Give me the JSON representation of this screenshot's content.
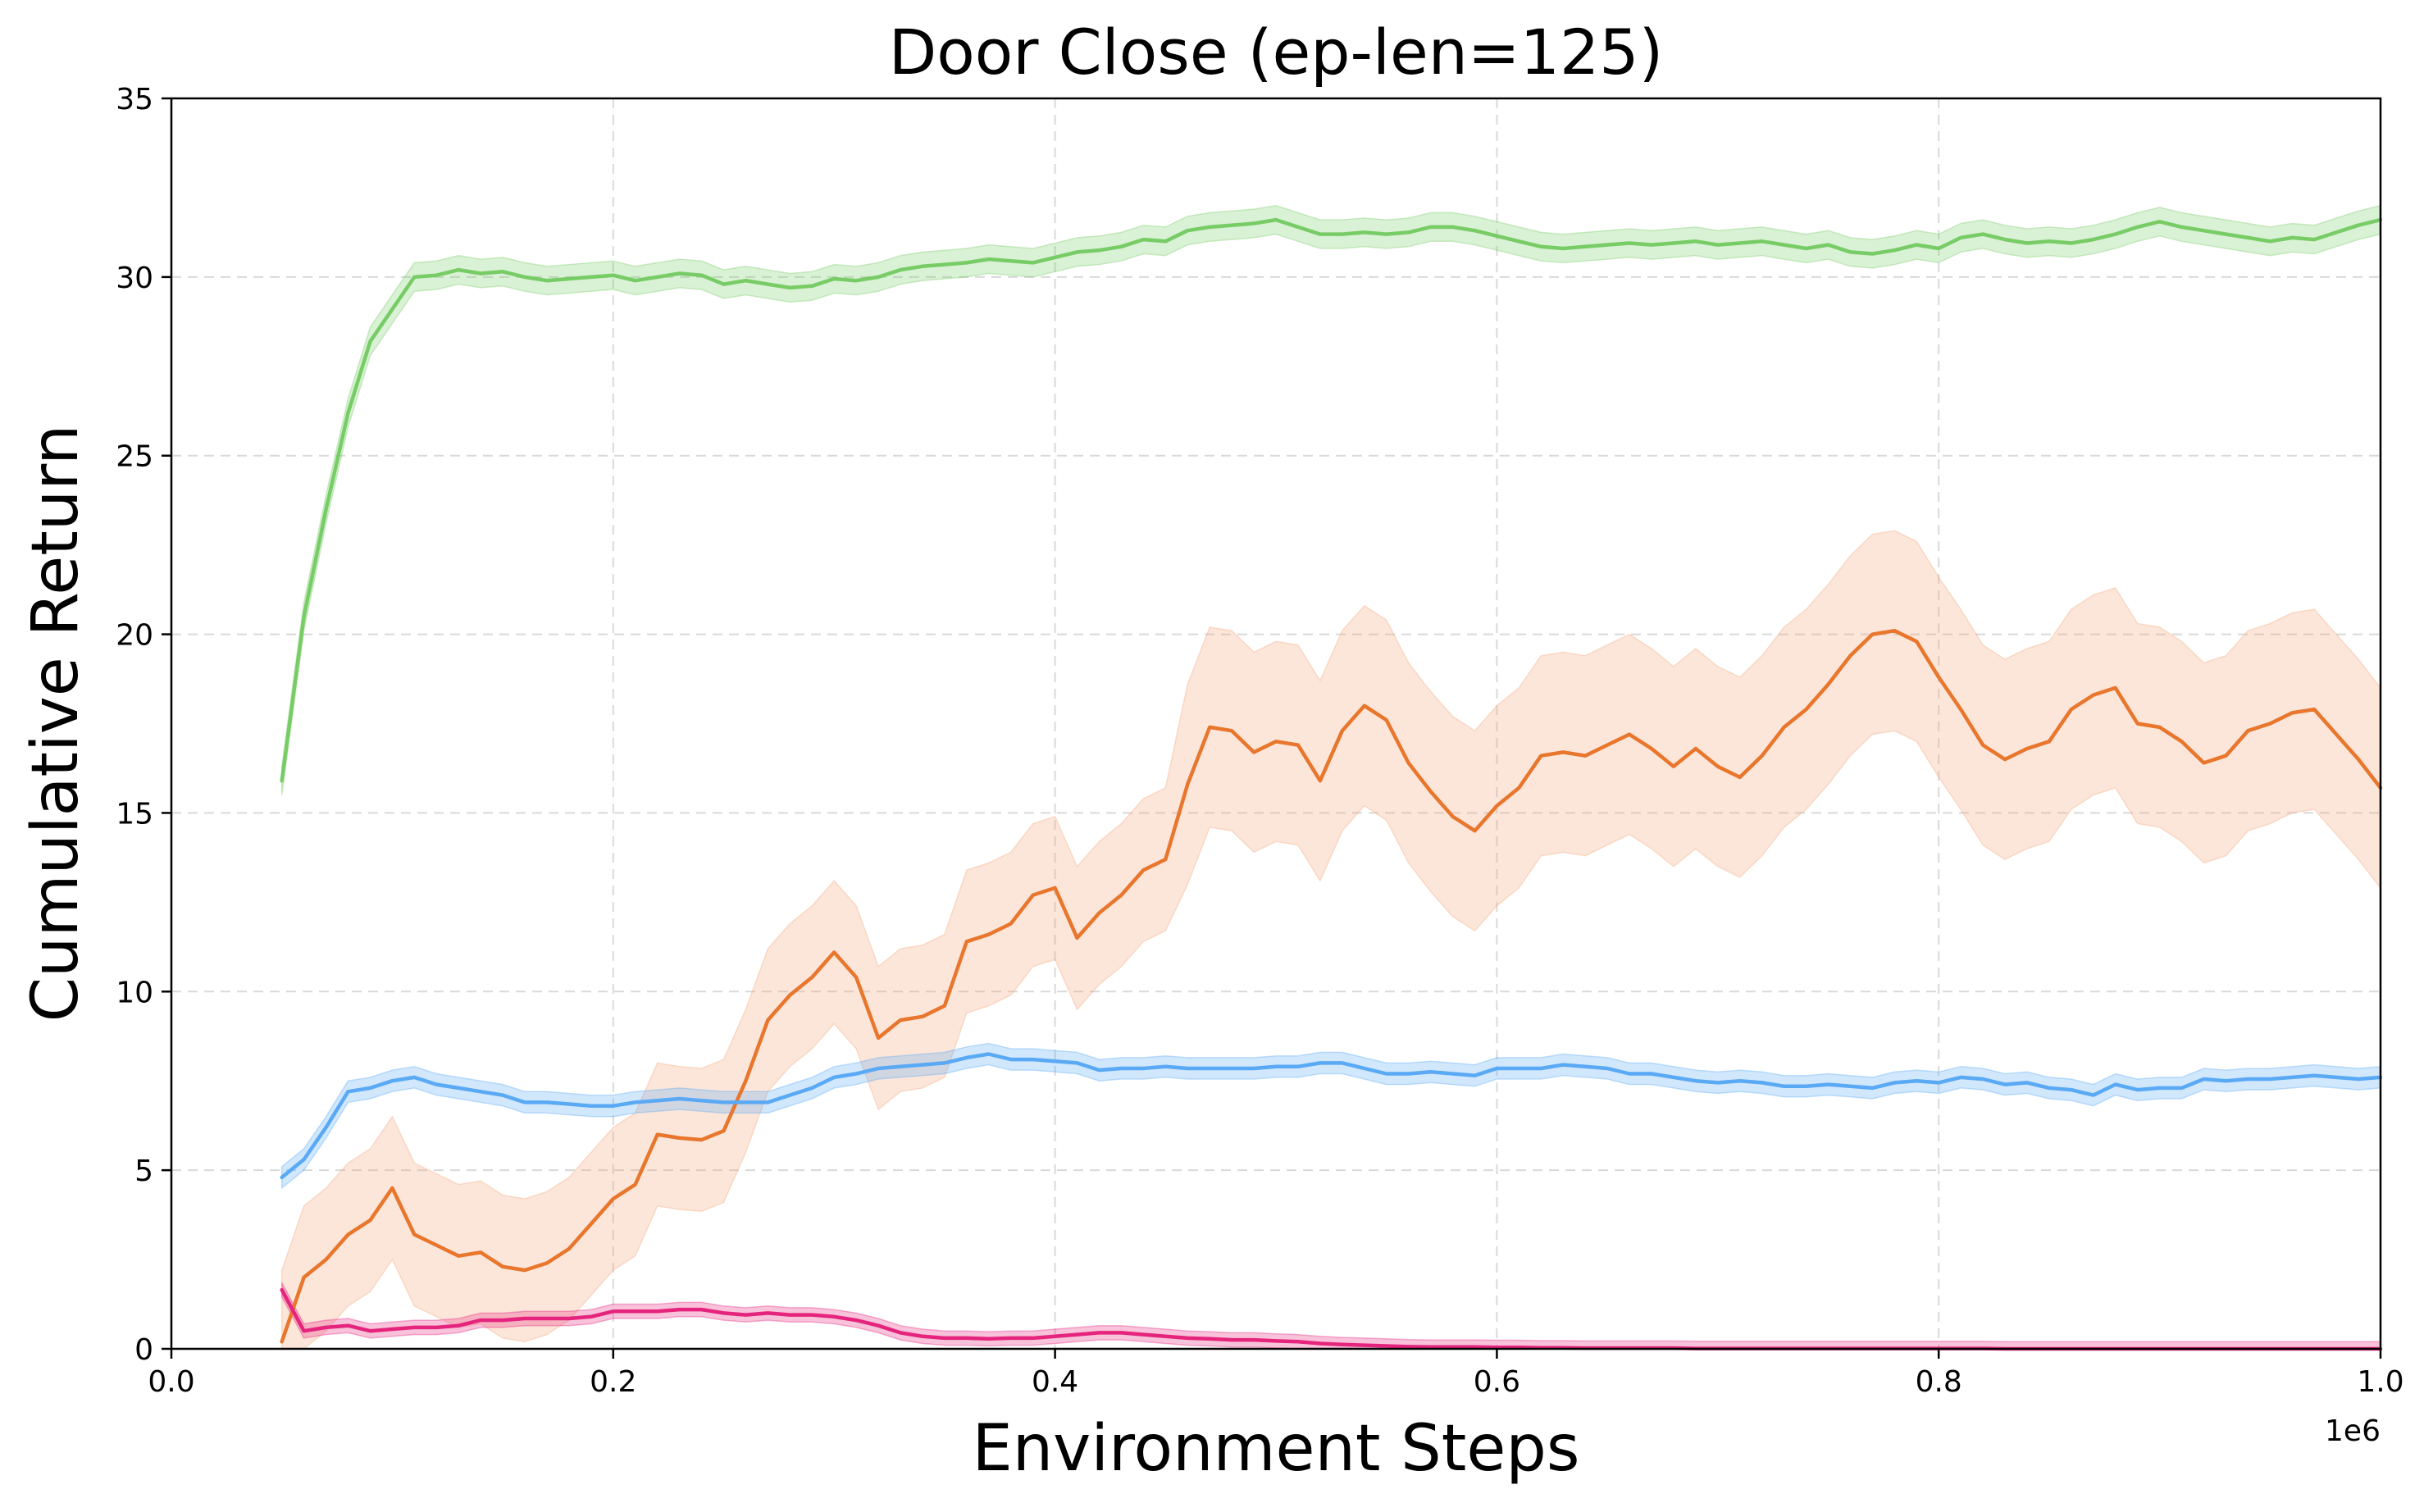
{
  "chart_data": {
    "type": "line",
    "title": "Door Close (ep-len=125)",
    "xlabel": "Environment Steps",
    "ylabel": "Cumulative Return",
    "x_offset_label": "1e6",
    "xlim": [
      0.0,
      1.0
    ],
    "ylim": [
      0,
      35
    ],
    "x_ticks": [
      0.0,
      0.2,
      0.4,
      0.6,
      0.8,
      1.0
    ],
    "x_tick_labels": [
      "0.0",
      "0.2",
      "0.4",
      "0.6",
      "0.8",
      "1.0"
    ],
    "y_ticks": [
      0,
      5,
      10,
      15,
      20,
      25,
      30,
      35
    ],
    "y_tick_labels": [
      "0",
      "5",
      "10",
      "15",
      "20",
      "25",
      "30",
      "35"
    ],
    "grid": true,
    "x": [
      0.05,
      0.06,
      0.07,
      0.08,
      0.09,
      0.1,
      0.11,
      0.12,
      0.13,
      0.14,
      0.15,
      0.16,
      0.17,
      0.18,
      0.19,
      0.2,
      0.21,
      0.22,
      0.23,
      0.24,
      0.25,
      0.26,
      0.27,
      0.28,
      0.29,
      0.3,
      0.31,
      0.32,
      0.33,
      0.34,
      0.35,
      0.36,
      0.37,
      0.38,
      0.39,
      0.4,
      0.41,
      0.42,
      0.43,
      0.44,
      0.45,
      0.46,
      0.47,
      0.48,
      0.49,
      0.5,
      0.51,
      0.52,
      0.53,
      0.54,
      0.55,
      0.56,
      0.57,
      0.58,
      0.59,
      0.6,
      0.61,
      0.62,
      0.63,
      0.64,
      0.65,
      0.66,
      0.67,
      0.68,
      0.69,
      0.7,
      0.71,
      0.72,
      0.73,
      0.74,
      0.75,
      0.76,
      0.77,
      0.78,
      0.79,
      0.8,
      0.81,
      0.82,
      0.83,
      0.84,
      0.85,
      0.86,
      0.87,
      0.88,
      0.89,
      0.9,
      0.91,
      0.92,
      0.93,
      0.94,
      0.95,
      0.96,
      0.97,
      0.98,
      0.99,
      1.0
    ],
    "series": [
      {
        "color": "#77cc66",
        "band_color": "#77cc66",
        "band": 0.4,
        "values": [
          15.9,
          20.5,
          23.5,
          26.2,
          28.2,
          29.1,
          30.0,
          30.05,
          30.2,
          30.1,
          30.15,
          30.0,
          29.9,
          29.95,
          30.0,
          30.05,
          29.9,
          30.0,
          30.1,
          30.05,
          29.8,
          29.9,
          29.8,
          29.7,
          29.75,
          29.95,
          29.9,
          30.0,
          30.2,
          30.3,
          30.35,
          30.4,
          30.5,
          30.45,
          30.4,
          30.55,
          30.7,
          30.75,
          30.85,
          31.05,
          31.0,
          31.3,
          31.4,
          31.45,
          31.5,
          31.6,
          31.4,
          31.2,
          31.2,
          31.25,
          31.2,
          31.25,
          31.4,
          31.4,
          31.3,
          31.15,
          31.0,
          30.85,
          30.8,
          30.85,
          30.9,
          30.95,
          30.9,
          30.95,
          31.0,
          30.9,
          30.95,
          31.0,
          30.9,
          30.8,
          30.9,
          30.7,
          30.65,
          30.75,
          30.9,
          30.8,
          31.1,
          31.2,
          31.05,
          30.95,
          31.0,
          30.95,
          31.05,
          31.2,
          31.4,
          31.55,
          31.4,
          31.3,
          31.2,
          31.1,
          31.0,
          31.1,
          31.05,
          31.25,
          31.45,
          31.6
        ]
      },
      {
        "color": "#e8762d",
        "band_color": "#f4a77a",
        "band": 2.0,
        "values": [
          0.2,
          2.0,
          2.5,
          3.2,
          3.6,
          4.5,
          3.2,
          2.9,
          2.6,
          2.7,
          2.3,
          2.2,
          2.4,
          2.8,
          3.5,
          4.2,
          4.6,
          6.0,
          5.9,
          5.85,
          6.1,
          7.5,
          9.2,
          9.9,
          10.4,
          11.1,
          10.4,
          8.7,
          9.2,
          9.3,
          9.6,
          11.4,
          11.6,
          11.9,
          12.7,
          12.9,
          11.5,
          12.2,
          12.7,
          13.4,
          13.7,
          15.8,
          17.4,
          17.3,
          16.7,
          17.0,
          16.9,
          15.9,
          17.3,
          18.0,
          17.6,
          16.4,
          15.6,
          14.9,
          14.5,
          15.2,
          15.7,
          16.6,
          16.7,
          16.6,
          16.9,
          17.2,
          16.8,
          16.3,
          16.8,
          16.3,
          16.0,
          16.6,
          17.4,
          17.9,
          18.6,
          19.4,
          20.0,
          20.1,
          19.8,
          18.8,
          17.9,
          16.9,
          16.5,
          16.8,
          17.0,
          17.9,
          18.3,
          18.5,
          17.5,
          17.4,
          17.0,
          16.4,
          16.6,
          17.3,
          17.5,
          17.8,
          17.9,
          17.2,
          16.5,
          15.7
        ]
      },
      {
        "color": "#5aa9f5",
        "band_color": "#5aa9f5",
        "band": 0.3,
        "values": [
          4.8,
          5.3,
          6.2,
          7.2,
          7.3,
          7.5,
          7.6,
          7.4,
          7.3,
          7.2,
          7.1,
          6.9,
          6.9,
          6.85,
          6.8,
          6.8,
          6.9,
          6.95,
          7.0,
          6.95,
          6.9,
          6.9,
          6.9,
          7.1,
          7.3,
          7.6,
          7.7,
          7.85,
          7.9,
          7.95,
          8.0,
          8.15,
          8.25,
          8.1,
          8.1,
          8.05,
          8.0,
          7.8,
          7.85,
          7.85,
          7.9,
          7.85,
          7.85,
          7.85,
          7.85,
          7.9,
          7.9,
          8.0,
          8.0,
          7.85,
          7.7,
          7.7,
          7.75,
          7.7,
          7.65,
          7.85,
          7.85,
          7.85,
          7.95,
          7.9,
          7.85,
          7.7,
          7.7,
          7.6,
          7.5,
          7.45,
          7.5,
          7.45,
          7.35,
          7.35,
          7.4,
          7.35,
          7.3,
          7.45,
          7.5,
          7.45,
          7.6,
          7.55,
          7.4,
          7.45,
          7.3,
          7.25,
          7.1,
          7.4,
          7.25,
          7.3,
          7.3,
          7.55,
          7.5,
          7.55,
          7.55,
          7.6,
          7.65,
          7.6,
          7.55,
          7.6
        ]
      },
      {
        "color": "#e5247d",
        "band_color": "#e5247d",
        "band": 0.2,
        "values": [
          1.65,
          0.5,
          0.6,
          0.65,
          0.5,
          0.55,
          0.6,
          0.6,
          0.65,
          0.8,
          0.8,
          0.85,
          0.85,
          0.85,
          0.9,
          1.05,
          1.05,
          1.05,
          1.1,
          1.1,
          1.0,
          0.95,
          1.0,
          0.95,
          0.95,
          0.9,
          0.8,
          0.65,
          0.45,
          0.35,
          0.3,
          0.3,
          0.28,
          0.3,
          0.3,
          0.35,
          0.4,
          0.45,
          0.45,
          0.4,
          0.35,
          0.3,
          0.28,
          0.25,
          0.25,
          0.22,
          0.2,
          0.15,
          0.12,
          0.1,
          0.08,
          0.06,
          0.05,
          0.05,
          0.05,
          0.04,
          0.04,
          0.03,
          0.03,
          0.02,
          0.02,
          0.02,
          0.02,
          0.02,
          0.01,
          0.01,
          0.01,
          0.01,
          0.01,
          0.01,
          0.01,
          0.01,
          0.01,
          0.01,
          0.01,
          0.01,
          0.01,
          0.01,
          0.0,
          0.0,
          0.0,
          0.0,
          0.0,
          0.0,
          0.0,
          0.0,
          0.0,
          0.0,
          0.0,
          0.0,
          0.0,
          0.0,
          0.0,
          0.0,
          0.0,
          0.0
        ]
      }
    ]
  }
}
